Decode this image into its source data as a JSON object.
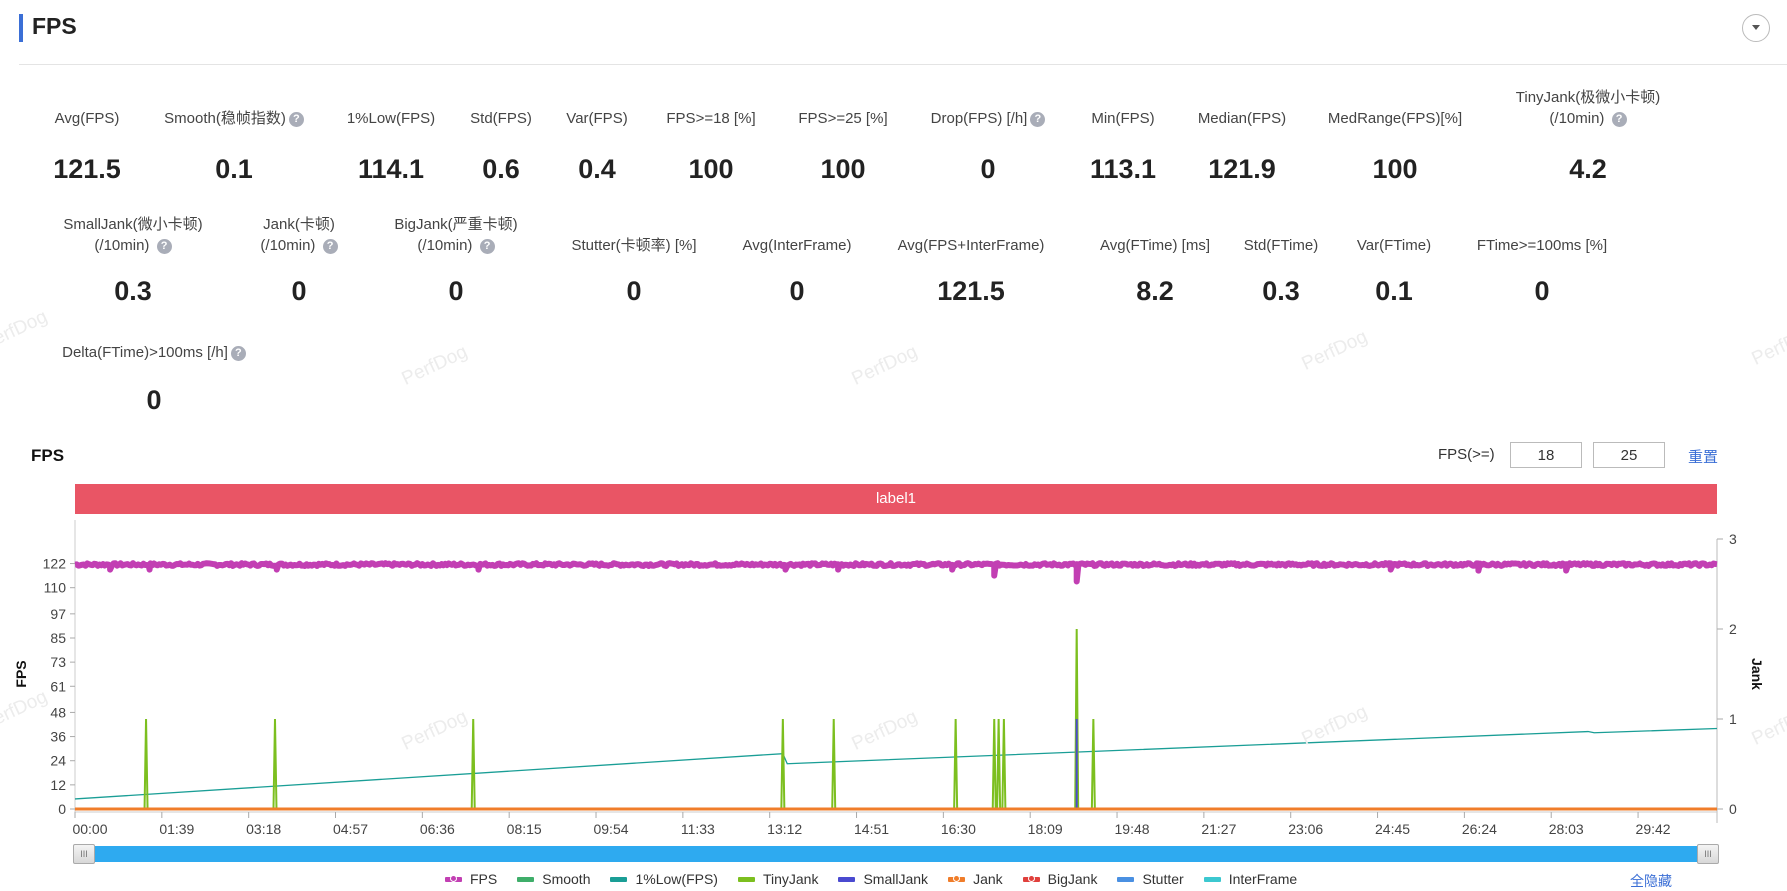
{
  "header": {
    "title": "FPS",
    "collapse_icon": "chevron-down-icon"
  },
  "stats_row1": [
    {
      "label": "Avg(FPS)",
      "value": "121.5",
      "help": false
    },
    {
      "label": "Smooth(稳帧指数)",
      "value": "0.1",
      "help": true
    },
    {
      "label": "1%Low(FPS)",
      "value": "114.1",
      "help": false
    },
    {
      "label": "Std(FPS)",
      "value": "0.6",
      "help": false
    },
    {
      "label": "Var(FPS)",
      "value": "0.4",
      "help": false
    },
    {
      "label": "FPS>=18 [%]",
      "value": "100",
      "help": false
    },
    {
      "label": "FPS>=25 [%]",
      "value": "100",
      "help": false
    },
    {
      "label": "Drop(FPS) [/h]",
      "value": "0",
      "help": true
    },
    {
      "label": "Min(FPS)",
      "value": "113.1",
      "help": false
    },
    {
      "label": "Median(FPS)",
      "value": "121.9",
      "help": false
    },
    {
      "label": "MedRange(FPS)[%]",
      "value": "100",
      "help": false
    },
    {
      "label": "TinyJank(极微小卡顿)",
      "label2": "(/10min)",
      "value": "4.2",
      "help": true
    }
  ],
  "stats_row2": [
    {
      "label": "SmallJank(微小卡顿)",
      "label2": "(/10min)",
      "value": "0.3",
      "help": true
    },
    {
      "label": "Jank(卡顿)",
      "label2": "(/10min)",
      "value": "0",
      "help": true
    },
    {
      "label": "BigJank(严重卡顿)",
      "label2": "(/10min)",
      "value": "0",
      "help": true
    },
    {
      "label": "Stutter(卡顿率) [%]",
      "value": "0",
      "help": false
    },
    {
      "label": "Avg(InterFrame)",
      "value": "0",
      "help": false
    },
    {
      "label": "Avg(FPS+InterFrame)",
      "value": "121.5",
      "help": false
    },
    {
      "label": "Avg(FTime) [ms]",
      "value": "8.2",
      "help": false
    },
    {
      "label": "Std(FTime)",
      "value": "0.3",
      "help": false
    },
    {
      "label": "Var(FTime)",
      "value": "0.1",
      "help": false
    },
    {
      "label": "FTime>=100ms [%]",
      "value": "0",
      "help": false
    }
  ],
  "stats_row3": [
    {
      "label": "Delta(FTime)>100ms [/h]",
      "value": "0",
      "help": true
    }
  ],
  "help_glyph": "?",
  "watermark": "PerfDog",
  "chart_panel": {
    "title": "FPS",
    "threshold_label": "FPS(>=)",
    "threshold1": "18",
    "threshold2": "25",
    "reset_label": "重置",
    "label_bar": "label1",
    "label_bar_color": "#e95565",
    "hide_all_label": "全隐藏",
    "scroll_handle_glyph": "III"
  },
  "chart_data": {
    "type": "line",
    "xlabel": "",
    "ylabel": "FPS",
    "y2label": "Jank",
    "duration_seconds": 1872,
    "x_ticks": [
      "00:00",
      "01:39",
      "03:18",
      "04:57",
      "06:36",
      "08:15",
      "09:54",
      "11:33",
      "13:12",
      "14:51",
      "16:30",
      "18:09",
      "19:48",
      "21:27",
      "23:06",
      "24:45",
      "26:24",
      "28:03",
      "29:42"
    ],
    "x_tick_step_seconds": 99,
    "y_ticks": [
      "0",
      "12",
      "24",
      "36",
      "48",
      "61",
      "73",
      "85",
      "97",
      "110",
      "122"
    ],
    "ylim": [
      0,
      134.2
    ],
    "y2_ticks": [
      "0",
      "1",
      "2",
      "3"
    ],
    "y2lim": [
      0,
      3
    ],
    "grid": false,
    "legend_position": "bottom",
    "series": [
      {
        "name": "FPS",
        "color": "#c23fb3",
        "axis": "left",
        "baseline": 121.5,
        "dips": [
          [
            40,
            119
          ],
          [
            85,
            119
          ],
          [
            230,
            119
          ],
          [
            460,
            119
          ],
          [
            810,
            119
          ],
          [
            870,
            119
          ],
          [
            1000,
            119
          ],
          [
            1048,
            116
          ],
          [
            1142,
            113.1
          ],
          [
            1500,
            119
          ],
          [
            1600,
            118.5
          ],
          [
            1700,
            118.5
          ]
        ]
      },
      {
        "name": "Smooth",
        "color": "#3fae6a",
        "axis": "left",
        "points": [
          [
            0,
            0
          ],
          [
            1872,
            0
          ]
        ]
      },
      {
        "name": "1%Low(FPS)",
        "color": "#1a9e96",
        "axis": "left",
        "points": [
          [
            0,
            5
          ],
          [
            807,
            27.5
          ],
          [
            812,
            22.5
          ],
          [
            1725,
            38.5
          ],
          [
            1732,
            37.9
          ],
          [
            1872,
            40
          ]
        ]
      },
      {
        "name": "TinyJank",
        "color": "#7cbf1f",
        "axis": "right",
        "points": [
          [
            81,
            1
          ],
          [
            228,
            1
          ],
          [
            454,
            1
          ],
          [
            807,
            1
          ],
          [
            865,
            1
          ],
          [
            1004,
            1
          ],
          [
            1048,
            1
          ],
          [
            1053,
            1
          ],
          [
            1059,
            1
          ],
          [
            1142,
            2
          ],
          [
            1161,
            1
          ]
        ]
      },
      {
        "name": "SmallJank",
        "color": "#4a4ad0",
        "axis": "right",
        "points": [
          [
            1142,
            1
          ]
        ]
      },
      {
        "name": "Jank",
        "color": "#f07d2a",
        "axis": "right",
        "points": [
          [
            0,
            0
          ],
          [
            1872,
            0
          ]
        ]
      },
      {
        "name": "BigJank",
        "color": "#e0403c",
        "axis": "right",
        "points": []
      },
      {
        "name": "Stutter",
        "color": "#4a90e2",
        "axis": "right",
        "points": []
      },
      {
        "name": "InterFrame",
        "color": "#3cc8d0",
        "axis": "right",
        "points": []
      }
    ]
  }
}
